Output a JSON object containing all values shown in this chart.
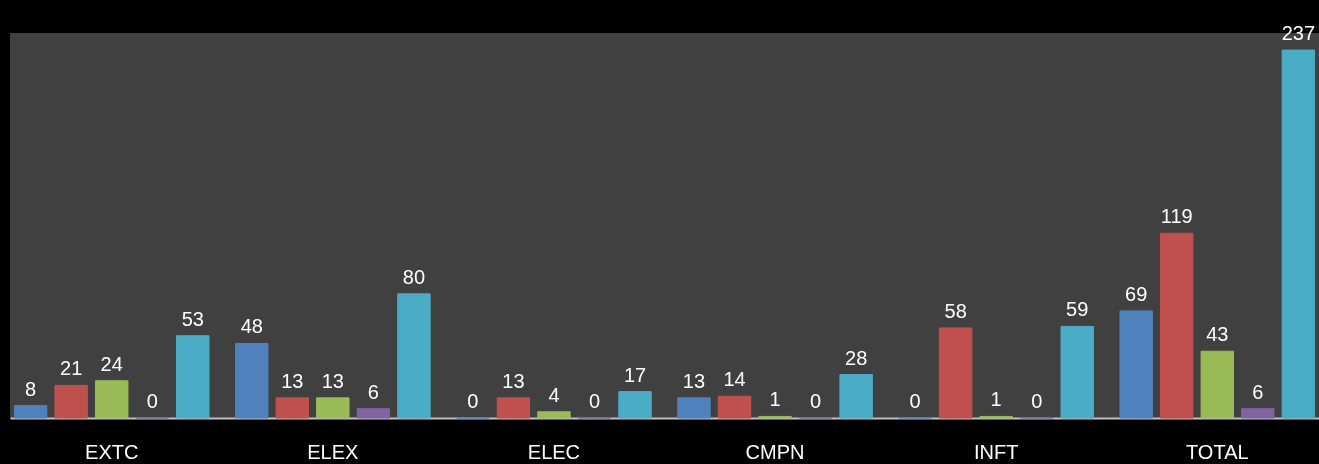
{
  "chart_data": {
    "type": "bar",
    "categories": [
      "EXTC",
      "ELEX",
      "ELEC",
      "CMPN",
      "INFT",
      "TOTAL"
    ],
    "series": [
      {
        "color": "#4f81bd",
        "values": [
          8,
          48,
          0,
          13,
          0,
          69
        ]
      },
      {
        "color": "#c0504d",
        "values": [
          21,
          13,
          13,
          14,
          58,
          119
        ]
      },
      {
        "color": "#9bbb59",
        "values": [
          24,
          13,
          4,
          1,
          1,
          43
        ]
      },
      {
        "color": "#8064a2",
        "values": [
          0,
          6,
          0,
          0,
          0,
          6
        ]
      },
      {
        "color": "#4bacc6",
        "values": [
          53,
          80,
          17,
          28,
          59,
          237
        ]
      }
    ],
    "ylim": [
      0,
      248
    ],
    "tick_labels": "x",
    "data_labels": true,
    "grid": false
  }
}
